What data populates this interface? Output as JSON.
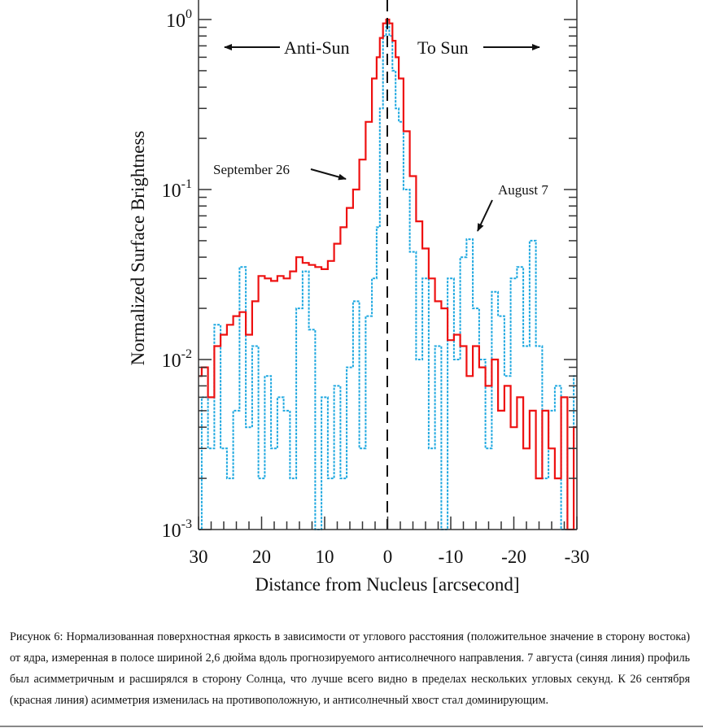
{
  "chart_data": {
    "type": "line",
    "step": true,
    "xlabel": "Distance from Nucleus [arcsecond]",
    "ylabel": "Normalized Surface Brightness",
    "xlim": [
      30,
      -30
    ],
    "ylim": [
      0.001,
      1.12
    ],
    "yscale": "log",
    "xticks": [
      "30",
      "20",
      "10",
      "0",
      "-10",
      "-20",
      "-30"
    ],
    "yticks": [
      {
        "base": "10",
        "exp": "0"
      },
      {
        "base": "10",
        "exp": "-1"
      },
      {
        "base": "10",
        "exp": "-2"
      },
      {
        "base": "10",
        "exp": "-3"
      }
    ],
    "grid": false,
    "x": [
      30,
      29,
      28,
      27,
      26,
      25,
      24,
      23,
      22,
      21,
      20,
      19,
      18,
      17,
      16,
      15,
      14,
      13,
      12,
      11,
      10,
      9,
      8,
      7,
      6,
      5,
      4,
      3,
      2,
      1.5,
      1,
      0.5,
      0,
      -0.5,
      -1,
      -1.5,
      -2,
      -3,
      -4,
      -5,
      -6,
      -7,
      -8,
      -9,
      -10,
      -11,
      -12,
      -13,
      -14,
      -15,
      -16,
      -17,
      -18,
      -19,
      -20,
      -21,
      -22,
      -23,
      -24,
      -25,
      -26,
      -27,
      -28,
      -29,
      -30
    ],
    "series": [
      {
        "name": "September 26",
        "color": "#ee1111",
        "style": "solid",
        "values": [
          0.008,
          0.009,
          0.006,
          0.012,
          0.014,
          0.016,
          0.018,
          0.019,
          0.014,
          0.022,
          0.031,
          0.03,
          0.029,
          0.031,
          0.03,
          0.033,
          0.04,
          0.037,
          0.036,
          0.035,
          0.034,
          0.038,
          0.048,
          0.06,
          0.078,
          0.1,
          0.15,
          0.25,
          0.45,
          0.6,
          0.78,
          0.95,
          1.0,
          0.95,
          0.75,
          0.6,
          0.45,
          0.22,
          0.12,
          0.065,
          0.045,
          0.03,
          0.022,
          0.02,
          0.013,
          0.014,
          0.012,
          0.008,
          0.012,
          0.009,
          0.007,
          0.01,
          0.005,
          0.007,
          0.004,
          0.006,
          0.003,
          0.005,
          0.002,
          0.005,
          0.003,
          0.002,
          0.006,
          0.001,
          0.004
        ]
      },
      {
        "name": "August 7",
        "color": "#1ea8e0",
        "style": "dashed",
        "values": [
          0.001,
          0.006,
          0.003,
          0.016,
          0.003,
          0.002,
          0.005,
          0.035,
          0.004,
          0.012,
          0.002,
          0.008,
          0.003,
          0.006,
          0.005,
          0.002,
          0.02,
          0.033,
          0.015,
          0.001,
          0.006,
          0.002,
          0.007,
          0.002,
          0.009,
          0.022,
          0.003,
          0.018,
          0.03,
          0.06,
          0.3,
          0.8,
          1.0,
          0.8,
          0.5,
          0.3,
          0.25,
          0.1,
          0.043,
          0.01,
          0.03,
          0.003,
          0.012,
          0.001,
          0.03,
          0.01,
          0.04,
          0.051,
          0.02,
          0.01,
          0.003,
          0.025,
          0.018,
          0.008,
          0.03,
          0.035,
          0.012,
          0.05,
          0.012,
          0.002,
          0.005,
          0.007,
          0.001,
          0.003,
          0.008
        ]
      }
    ],
    "annotations": {
      "anti_sun": "Anti-Sun",
      "to_sun": "To Sun",
      "september": "September 26",
      "august": "August 7"
    }
  },
  "caption": "Рисунок 6: Нормализованная поверхностная яркость в зависимости от углового расстояния (положительное значение в сторону востока) от ядра, измеренная в полосе шириной 2,6 дюйма вдоль прогнозируемого антисолнечного направления. 7 августа (синяя линия) профиль был асимметричным и расширялся в сторону Солнца, что лучше всего видно в пределах нескольких угловых секунд. К 26 сентября (красная линия) асимметрия изменилась на противоположную, и антисолнечный хвост стал доминирующим."
}
